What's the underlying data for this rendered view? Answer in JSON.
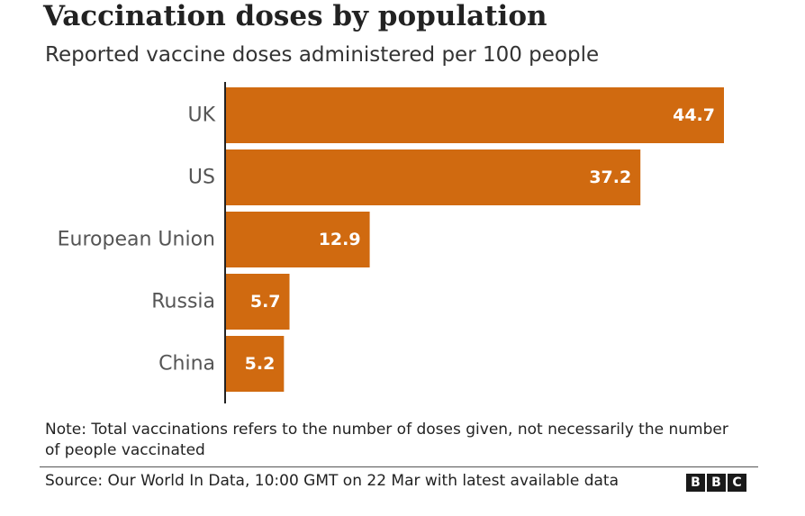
{
  "header": {
    "title": "Vaccination doses by population",
    "subtitle": "Reported vaccine doses administered per 100 people"
  },
  "chart_data": {
    "type": "bar",
    "orientation": "horizontal",
    "categories": [
      "UK",
      "US",
      "European Union",
      "Russia",
      "China"
    ],
    "values": [
      44.7,
      37.2,
      12.9,
      5.7,
      5.2
    ],
    "value_labels": [
      "44.7",
      "37.2",
      "12.9",
      "5.7",
      "5.2"
    ],
    "xlim": [
      0,
      44.7
    ],
    "grid": false,
    "bar_color": "#d06a10",
    "label_color": "#ffffff"
  },
  "footer": {
    "note": "Note: Total vaccinations refers to the number of doses given, not necessarily the number of people vaccinated",
    "source": "Source: Our World In Data, 10:00 GMT on 22 Mar with latest available data",
    "logo_letters": [
      "B",
      "B",
      "C"
    ]
  }
}
